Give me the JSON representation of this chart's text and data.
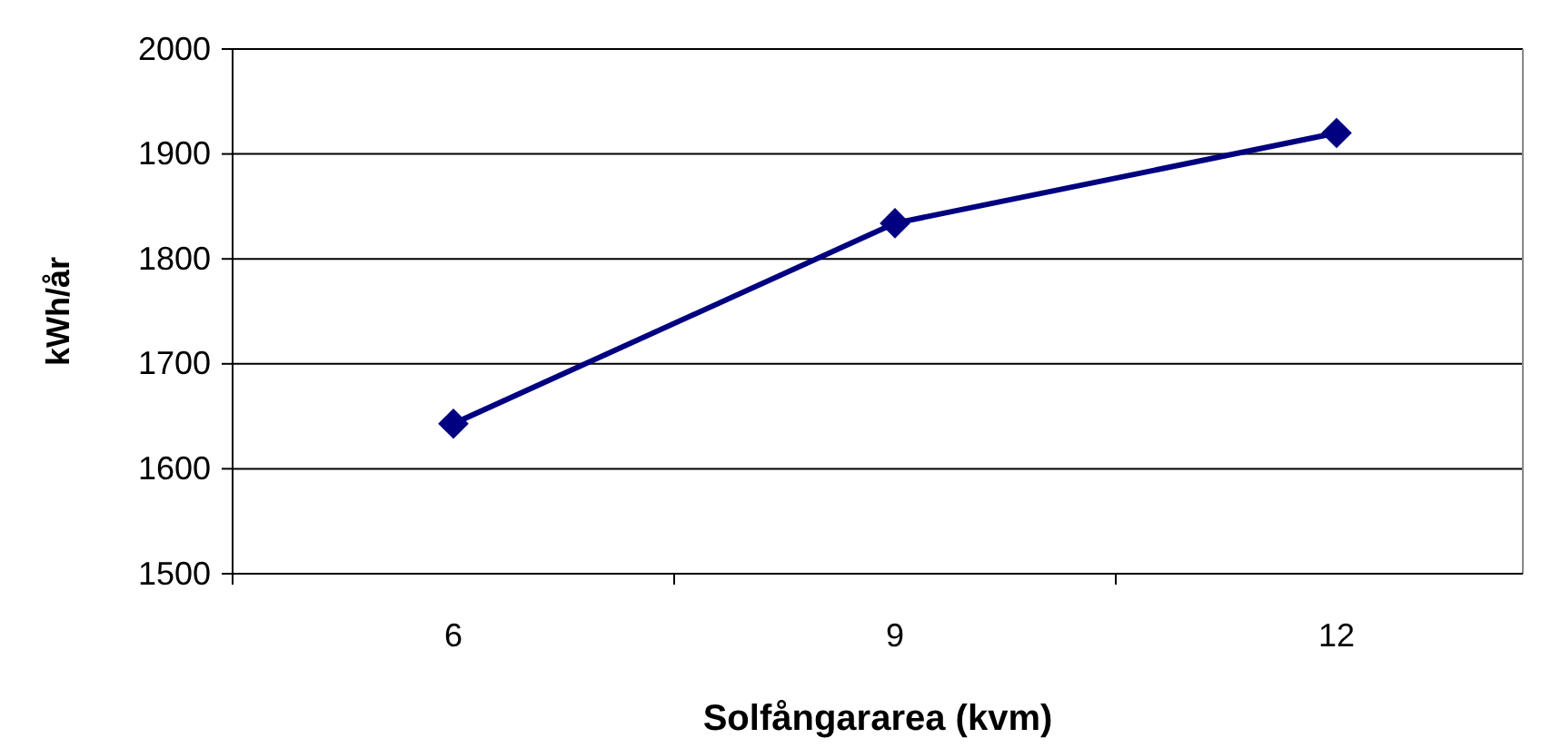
{
  "chart_data": {
    "type": "line",
    "xlabel": "Solfångararea (kvm)",
    "ylabel": "kWh/år",
    "categories": [
      "6",
      "9",
      "12"
    ],
    "series": [
      {
        "color": "#000080",
        "values": [
          1643,
          1834,
          1920
        ]
      }
    ],
    "ylim": [
      1500,
      2000
    ],
    "yticks": [
      1500,
      1600,
      1700,
      1800,
      1900,
      2000
    ],
    "grid": "y",
    "marker": "diamond",
    "line_style": "solid"
  }
}
